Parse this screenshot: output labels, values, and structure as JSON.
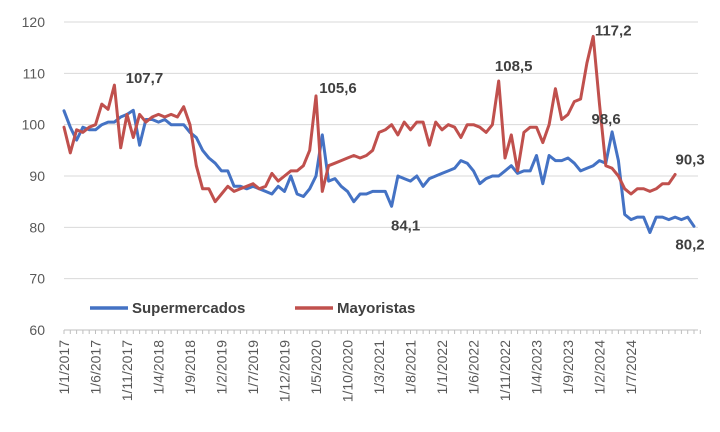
{
  "chart_data": {
    "type": "line",
    "title": "",
    "xlabel": "",
    "ylabel": "",
    "ylim": [
      60,
      120
    ],
    "yticks": [
      60,
      70,
      80,
      90,
      100,
      110,
      120
    ],
    "grid": "horizontal",
    "legend": "bottom-left",
    "period_start": "2017-01",
    "frequency": "monthly",
    "x_tick_labels": [
      "1/1/2017",
      "1/6/2017",
      "1/11/2017",
      "1/4/2018",
      "1/9/2018",
      "1/2/2019",
      "1/7/2019",
      "1/12/2019",
      "1/5/2020",
      "1/10/2020",
      "1/3/2021",
      "1/8/2021",
      "1/1/2022",
      "1/6/2022",
      "1/11/2022",
      "1/4/2023",
      "1/9/2023",
      "1/2/2024",
      "1/7/2024"
    ],
    "series": [
      {
        "name": "Supermercados",
        "color": "#4472C4",
        "values": [
          102.7,
          99.5,
          97.0,
          99.5,
          99.0,
          99.0,
          100.0,
          100.5,
          100.5,
          101.5,
          102.0,
          102.8,
          96.0,
          101.0,
          101.0,
          100.5,
          101.0,
          100.0,
          100.0,
          100.0,
          98.5,
          97.5,
          95.0,
          93.5,
          92.5,
          91.0,
          91.0,
          88.0,
          88.0,
          87.5,
          88.0,
          87.5,
          87.0,
          86.5,
          88.0,
          87.0,
          90.0,
          86.5,
          86.0,
          87.5,
          90.0,
          98.0,
          89.0,
          89.5,
          88.0,
          87.0,
          85.0,
          86.5,
          86.5,
          87.0,
          87.0,
          87.0,
          84.1,
          90.0,
          89.5,
          89.0,
          90.0,
          88.0,
          89.5,
          90.0,
          90.5,
          91.0,
          91.5,
          93.0,
          92.5,
          91.0,
          88.5,
          89.5,
          90.0,
          90.0,
          91.0,
          92.0,
          90.5,
          91.0,
          91.0,
          94.0,
          88.5,
          94.0,
          93.0,
          93.0,
          93.5,
          92.5,
          91.0,
          91.5,
          92.0,
          93.0,
          92.5,
          98.6,
          93.0,
          82.5,
          81.5,
          82.0,
          82.0,
          79.0,
          82.0,
          82.0,
          81.5,
          82.0,
          81.5,
          82.0,
          80.2
        ],
        "labels": [
          {
            "index": 52,
            "text": "84,1"
          },
          {
            "index": 87,
            "text": "98,6"
          },
          {
            "index": 100,
            "text": "80,2"
          }
        ]
      },
      {
        "name": "Mayoristas",
        "color": "#C0504D",
        "values": [
          99.5,
          94.5,
          99.0,
          98.5,
          99.5,
          100.0,
          104.0,
          103.0,
          107.7,
          95.5,
          102.0,
          97.5,
          102.0,
          100.5,
          101.5,
          102.0,
          101.5,
          102.0,
          101.5,
          103.5,
          100.0,
          92.0,
          87.5,
          87.5,
          85.0,
          86.5,
          88.0,
          87.0,
          87.5,
          88.0,
          88.5,
          87.5,
          88.0,
          90.5,
          89.0,
          90.0,
          91.0,
          91.0,
          92.0,
          95.0,
          105.6,
          87.0,
          92.0,
          92.5,
          93.0,
          93.5,
          94.0,
          93.5,
          94.0,
          95.0,
          98.5,
          99.0,
          100.0,
          98.0,
          100.5,
          99.0,
          100.5,
          100.5,
          96.0,
          100.5,
          99.0,
          100.0,
          99.5,
          97.5,
          100.0,
          100.0,
          99.5,
          98.5,
          100.0,
          108.5,
          93.5,
          98.0,
          91.0,
          98.5,
          99.5,
          99.5,
          96.5,
          100.0,
          107.0,
          101.0,
          102.0,
          104.5,
          105.0,
          112.0,
          117.2,
          104.0,
          92.0,
          91.5,
          90.0,
          87.5,
          86.5,
          87.5,
          87.5,
          87.0,
          87.5,
          88.5,
          88.5,
          90.3
        ],
        "labels": [
          {
            "index": 8,
            "text": "107,7"
          },
          {
            "index": 40,
            "text": "105,6"
          },
          {
            "index": 69,
            "text": "108,5"
          },
          {
            "index": 84,
            "text": "117,2"
          },
          {
            "index": 97,
            "text": "90,3"
          }
        ]
      }
    ]
  }
}
